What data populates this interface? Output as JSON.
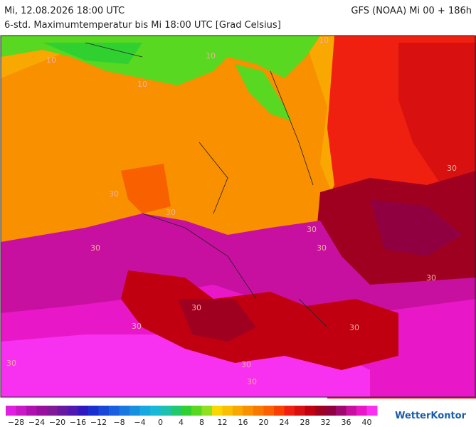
{
  "header": {
    "date": "Mi, 12.08.2026 18:00 UTC",
    "model": "GFS (NOAA) Mi 00 + 186h",
    "subtitle": "6-std. Maximumtemperatur bis Mi 18:00 UTC [Grad Celsius]"
  },
  "map": {
    "contour_labels": [
      "10",
      "10",
      "10",
      "10",
      "30",
      "30",
      "30",
      "30",
      "30",
      "30",
      "30",
      "30",
      "30",
      "30",
      "30",
      "30",
      "30"
    ]
  },
  "legend": {
    "colors": [
      "#e020e0",
      "#c818c8",
      "#b010b0",
      "#9810a0",
      "#801898",
      "#6818a0",
      "#5018b0",
      "#3018c0",
      "#1830d0",
      "#1848d8",
      "#1860e0",
      "#1878e0",
      "#1890e0",
      "#18a8e0",
      "#18b8d8",
      "#20c0b0",
      "#20c870",
      "#30d030",
      "#58d820",
      "#90e020",
      "#f8d800",
      "#f8c000",
      "#f8a800",
      "#f89000",
      "#f87800",
      "#f86000",
      "#f84000",
      "#f02010",
      "#d81010",
      "#c00010",
      "#a00020",
      "#900040",
      "#a00870",
      "#c810a0",
      "#e818c8",
      "#f830f0"
    ],
    "labels": [
      "−28",
      "−24",
      "−20",
      "−16",
      "−12",
      "−8",
      "−4",
      "0",
      "4",
      "8",
      "12",
      "16",
      "20",
      "24",
      "28",
      "32",
      "36",
      "40"
    ]
  },
  "logo": "WetterKontor"
}
